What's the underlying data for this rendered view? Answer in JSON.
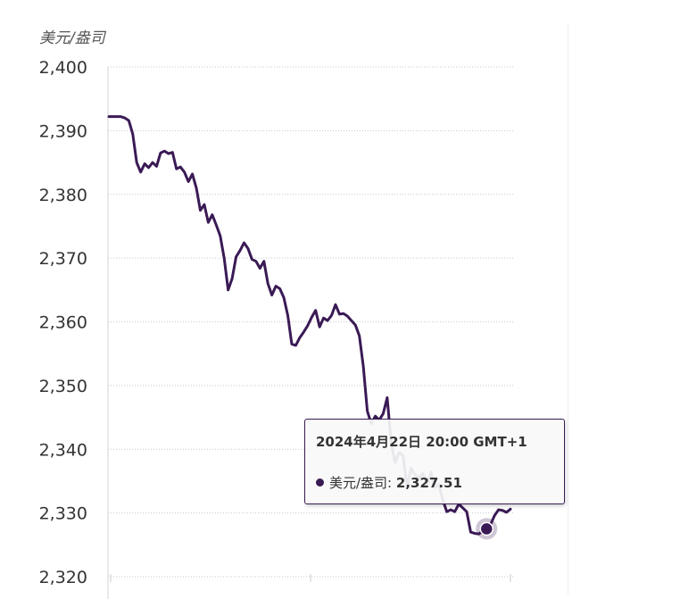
{
  "chart_data": {
    "type": "line",
    "unit_label": "美元/盎司",
    "ylim": [
      2320,
      2400
    ],
    "y_ticks": [
      2320,
      2330,
      2340,
      2350,
      2360,
      2370,
      2380,
      2390,
      2400
    ],
    "y_tick_labels": [
      "2,320",
      "2,330",
      "2,340",
      "2,350",
      "2,360",
      "2,370",
      "2,380",
      "2,390",
      "2,400"
    ],
    "grid": true,
    "grid_style": "dotted horizontal",
    "series": [
      {
        "name": "美元/盎司",
        "color": "#3a1a55",
        "values": [
          2392.2,
          2392.2,
          2392.2,
          2392.2,
          2392.0,
          2391.6,
          2389.5,
          2385.0,
          2383.5,
          2384.8,
          2384.2,
          2385.0,
          2384.4,
          2386.5,
          2386.8,
          2386.4,
          2386.6,
          2384.0,
          2384.3,
          2383.5,
          2382.0,
          2383.2,
          2381.0,
          2377.5,
          2378.4,
          2375.6,
          2376.8,
          2375.2,
          2373.5,
          2370.0,
          2365.0,
          2366.8,
          2370.2,
          2371.2,
          2372.4,
          2371.5,
          2369.8,
          2369.5,
          2368.4,
          2369.5,
          2366.0,
          2364.2,
          2365.6,
          2365.2,
          2363.8,
          2361.0,
          2356.5,
          2356.3,
          2357.5,
          2358.4,
          2359.4,
          2360.7,
          2361.8,
          2359.2,
          2360.6,
          2360.2,
          2361.0,
          2362.7,
          2361.2,
          2361.3,
          2360.9,
          2360.2,
          2359.5,
          2357.8,
          2353.0,
          2346.0,
          2344.0,
          2345.2,
          2344.6,
          2345.6,
          2348.1,
          2341.0,
          2337.9,
          2339.5,
          2339.0,
          2334.0,
          2337.0,
          2336.0,
          2335.5,
          2336.2,
          2334.5,
          2336.4,
          2334.0,
          2334.5,
          2332.0,
          2330.2,
          2330.5,
          2330.2,
          2331.4,
          2330.8,
          2330.2,
          2327.0,
          2326.8,
          2326.7,
          2327.1,
          2327.51,
          2328.2,
          2329.6,
          2330.5,
          2330.4,
          2330.1,
          2330.6
        ]
      }
    ],
    "tooltip": {
      "datetime": "2024年4月22日 20:00 GMT+1",
      "series_name": "美元/盎司:",
      "value_text": "2,327.51",
      "value": 2327.51,
      "point_index": 95
    }
  }
}
